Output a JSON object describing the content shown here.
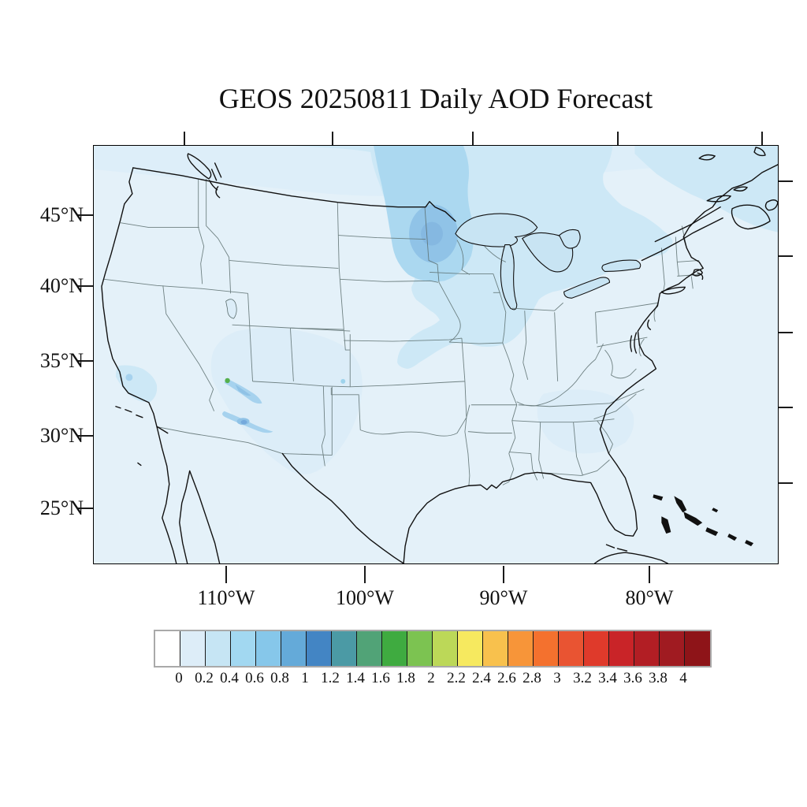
{
  "title": "GEOS 20250811 Daily AOD Forecast",
  "map": {
    "lat_tick_labels": [
      "45°N",
      "40°N",
      "35°N",
      "30°N",
      "25°N"
    ],
    "lon_tick_labels": [
      "110°W",
      "100°W",
      "90°W",
      "80°W"
    ]
  },
  "chart_data": {
    "type": "heatmap",
    "title": "GEOS 20250811 Daily AOD Forecast",
    "model": "GEOS",
    "forecast_date": "20250811",
    "variable": "Daily AOD (aerosol optical depth), filled contours over CONUS",
    "axis": {
      "lat_tick_labels": [
        "45°N",
        "40°N",
        "35°N",
        "30°N",
        "25°N"
      ],
      "lon_tick_labels": [
        "110°W",
        "100°W",
        "90°W",
        "80°W"
      ],
      "approx_extent_lat": [
        21,
        50
      ],
      "approx_extent_lon": [
        -120,
        -70
      ]
    },
    "colorbar": {
      "orientation": "horizontal",
      "tick_labels": [
        "0",
        "0.2",
        "0.4",
        "0.6",
        "0.8",
        "1",
        "1.2",
        "1.4",
        "1.6",
        "1.8",
        "2",
        "2.2",
        "2.4",
        "2.6",
        "2.8",
        "3",
        "3.2",
        "3.4",
        "3.6",
        "3.8",
        "4"
      ],
      "colors": [
        "#ffffff",
        "#ddedf8",
        "#c6e5f4",
        "#a2d8f1",
        "#86c7ea",
        "#64aad9",
        "#4385c4",
        "#4b9aa5",
        "#51a377",
        "#3fab40",
        "#7cc351",
        "#bcd858",
        "#f6e95f",
        "#f8c14d",
        "#f79539",
        "#f4712e",
        "#e95432",
        "#df3a2b",
        "#c92428",
        "#b21e24",
        "#a01b21",
        "#8e1418"
      ]
    },
    "level_colors": {
      "aod_0_02": "#e4f1f9",
      "aod_02_04": "#cde8f6",
      "aod_02_04_faint": "#dcedf8",
      "aod_04_06": "#abd8f0",
      "aod_06_08": "#90c3e7",
      "aod_08_10": "#85b8e1",
      "speck_light": "#a6d2ee",
      "speck_mid": "#8fc2e6",
      "speck_blue_core": "#74a9dc",
      "speck_green": "#55b04c",
      "speck_cyan": "#9ed3ec",
      "lake": "#c8e4f3"
    },
    "features": [
      {
        "name": "upper-midwest-plume",
        "location": "Minnesota / eastern Dakotas / western Great Lakes",
        "peak_aod": "0.6-0.8"
      },
      {
        "name": "canada-great-lakes-band",
        "location": "southern Canada through Great Lakes toward Northeast",
        "aod": "0.2-0.4"
      },
      {
        "name": "plains-tongue",
        "location": "Iowa / Nebraska / Kansas / Missouri",
        "aod": "0.2-0.4"
      },
      {
        "name": "arizona-new-mexico-haze",
        "location": "eastern Arizona / New Mexico / Texas panhandle",
        "aod": "0.2-0.4"
      },
      {
        "name": "arizona-fire-specks",
        "location": "east-central Arizona and SW New Mexico border area",
        "peak_aod": "~1.4-1.6 green speck, ~0.8-1 blue speck"
      },
      {
        "name": "california-central-valley-patch",
        "location": "southern Central Valley, California",
        "aod": "0.2-0.6"
      },
      {
        "name": "southeast-patch",
        "location": "Georgia / South Carolina",
        "aod": "~0.2-0.3"
      }
    ]
  }
}
